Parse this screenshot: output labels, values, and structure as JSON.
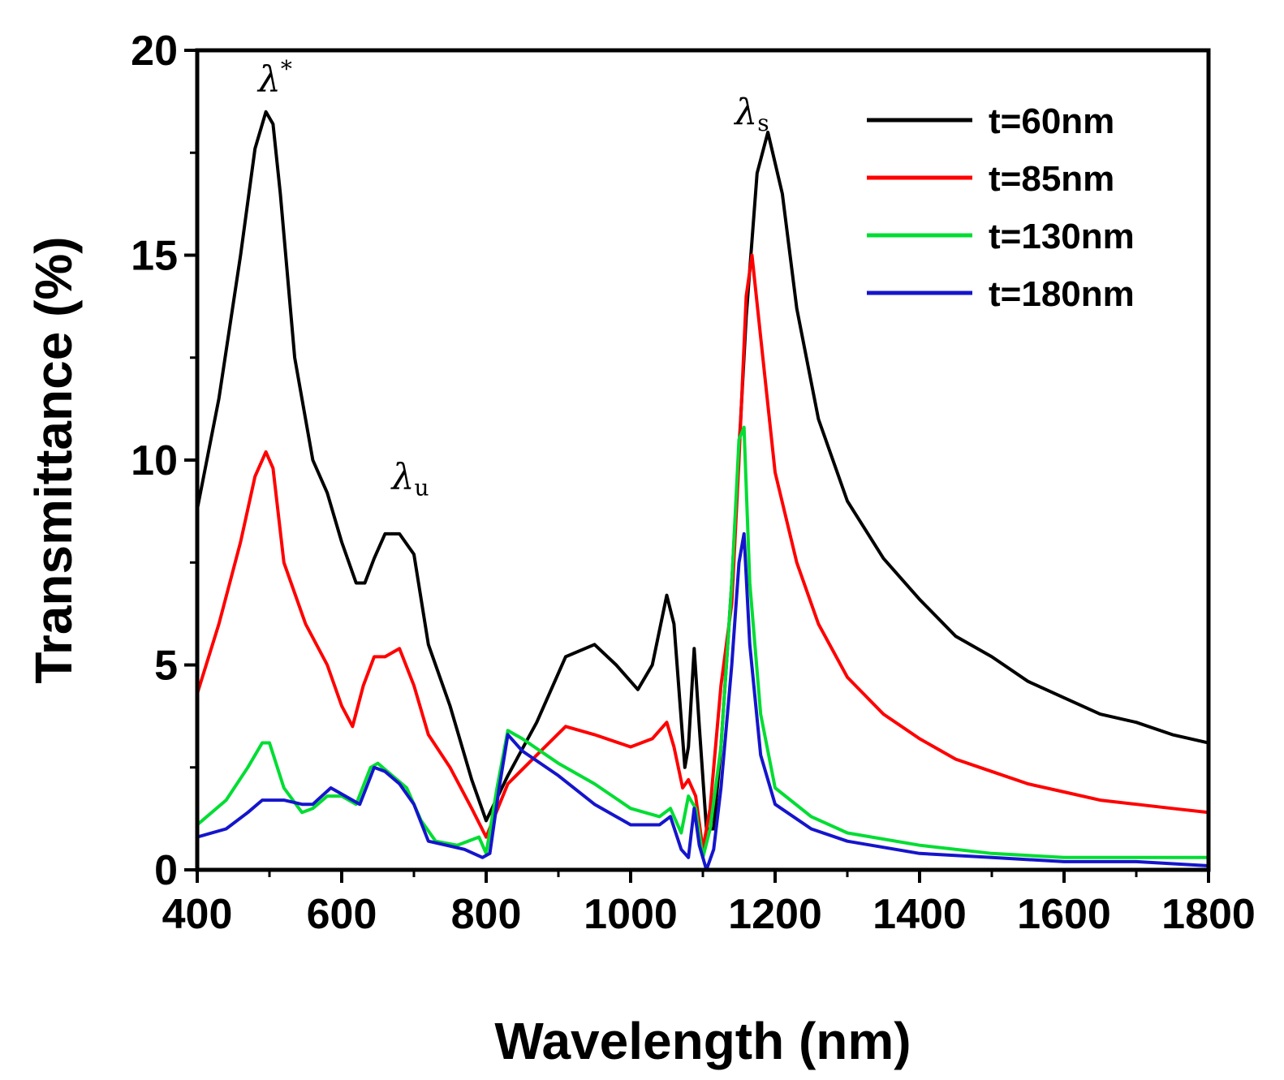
{
  "chart_data": {
    "type": "line",
    "title": "",
    "xlabel": "Wavelength (nm)",
    "ylabel": "Transmittance (%)",
    "xlim": [
      400,
      1800
    ],
    "ylim": [
      0,
      20
    ],
    "x_ticks": [
      400,
      600,
      800,
      1000,
      1200,
      1400,
      1600,
      1800
    ],
    "y_ticks": [
      0,
      5,
      10,
      15,
      20
    ],
    "grid": false,
    "legend_position": "top-right",
    "annotations": [
      {
        "symbol": "λ",
        "sub": "",
        "sup": "*",
        "x": 500,
        "y": 19.0
      },
      {
        "symbol": "λ",
        "sub": "u",
        "sup": "",
        "x": 685,
        "y": 9.3
      },
      {
        "symbol": "λ",
        "sub": "s",
        "sup": "",
        "x": 1160,
        "y": 18.2
      }
    ],
    "series": [
      {
        "name": "t=60nm",
        "color": "#000000",
        "x": [
          400,
          430,
          460,
          480,
          495,
          505,
          515,
          535,
          560,
          580,
          600,
          620,
          632,
          645,
          660,
          680,
          700,
          720,
          750,
          780,
          800,
          830,
          870,
          910,
          950,
          980,
          1010,
          1030,
          1050,
          1060,
          1075,
          1080,
          1088,
          1095,
          1105,
          1115,
          1125,
          1140,
          1160,
          1175,
          1190,
          1210,
          1230,
          1260,
          1300,
          1350,
          1400,
          1450,
          1500,
          1550,
          1600,
          1650,
          1700,
          1750,
          1800
        ],
        "y": [
          8.8,
          11.5,
          15.0,
          17.6,
          18.5,
          18.2,
          16.5,
          12.5,
          10.0,
          9.2,
          8.0,
          7.0,
          7.0,
          7.6,
          8.2,
          8.2,
          7.7,
          5.5,
          4.0,
          2.2,
          1.2,
          2.3,
          3.6,
          5.2,
          5.5,
          5.0,
          4.4,
          5.0,
          6.7,
          6.0,
          2.5,
          3.0,
          5.4,
          3.5,
          1.0,
          1.0,
          3.0,
          7.0,
          13.5,
          17.0,
          18.0,
          16.5,
          13.7,
          11.0,
          9.0,
          7.6,
          6.6,
          5.7,
          5.2,
          4.6,
          4.2,
          3.8,
          3.6,
          3.3,
          3.1
        ]
      },
      {
        "name": "t=85nm",
        "color": "#ff0000",
        "x": [
          400,
          430,
          460,
          480,
          495,
          505,
          520,
          550,
          580,
          600,
          615,
          630,
          645,
          660,
          680,
          700,
          720,
          750,
          780,
          800,
          830,
          870,
          910,
          950,
          1000,
          1030,
          1050,
          1060,
          1072,
          1080,
          1090,
          1100,
          1110,
          1125,
          1140,
          1150,
          1160,
          1168,
          1180,
          1200,
          1230,
          1260,
          1300,
          1350,
          1400,
          1450,
          1500,
          1550,
          1600,
          1650,
          1700,
          1750,
          1800
        ],
        "y": [
          4.3,
          6.0,
          8.0,
          9.6,
          10.2,
          9.8,
          7.5,
          6.0,
          5.0,
          4.0,
          3.5,
          4.5,
          5.2,
          5.2,
          5.4,
          4.5,
          3.3,
          2.5,
          1.5,
          0.8,
          2.1,
          2.8,
          3.5,
          3.3,
          3.0,
          3.2,
          3.6,
          3.0,
          2.0,
          2.2,
          1.8,
          0.5,
          1.5,
          4.5,
          6.5,
          10.0,
          14.0,
          15.0,
          13.0,
          9.7,
          7.5,
          6.0,
          4.7,
          3.8,
          3.2,
          2.7,
          2.4,
          2.1,
          1.9,
          1.7,
          1.6,
          1.5,
          1.4
        ]
      },
      {
        "name": "t=130nm",
        "color": "#00dd33",
        "x": [
          400,
          440,
          470,
          490,
          500,
          520,
          545,
          560,
          580,
          600,
          620,
          640,
          650,
          670,
          690,
          710,
          730,
          760,
          790,
          800,
          815,
          830,
          850,
          900,
          950,
          1000,
          1040,
          1055,
          1070,
          1080,
          1090,
          1100,
          1110,
          1125,
          1140,
          1150,
          1157,
          1165,
          1180,
          1200,
          1250,
          1300,
          1400,
          1500,
          1600,
          1700,
          1800
        ],
        "y": [
          1.1,
          1.7,
          2.5,
          3.1,
          3.1,
          2.0,
          1.4,
          1.5,
          1.8,
          1.8,
          1.6,
          2.5,
          2.6,
          2.3,
          2.0,
          1.2,
          0.7,
          0.6,
          0.8,
          0.4,
          2.0,
          3.4,
          3.2,
          2.6,
          2.1,
          1.5,
          1.3,
          1.5,
          0.9,
          1.8,
          1.5,
          0.3,
          1.0,
          3.0,
          7.0,
          10.5,
          10.8,
          7.0,
          3.8,
          2.0,
          1.3,
          0.9,
          0.6,
          0.4,
          0.3,
          0.3,
          0.3
        ]
      },
      {
        "name": "t=180nm",
        "color": "#1515cc",
        "x": [
          400,
          440,
          470,
          490,
          500,
          520,
          545,
          560,
          585,
          605,
          625,
          645,
          660,
          680,
          700,
          720,
          745,
          770,
          795,
          805,
          818,
          830,
          850,
          900,
          950,
          1000,
          1040,
          1055,
          1070,
          1080,
          1088,
          1095,
          1105,
          1115,
          1125,
          1140,
          1150,
          1157,
          1165,
          1180,
          1200,
          1250,
          1300,
          1400,
          1500,
          1600,
          1700,
          1800
        ],
        "y": [
          0.8,
          1.0,
          1.4,
          1.7,
          1.7,
          1.7,
          1.6,
          1.6,
          2.0,
          1.8,
          1.6,
          2.5,
          2.4,
          2.1,
          1.6,
          0.7,
          0.6,
          0.5,
          0.3,
          0.4,
          2.0,
          3.3,
          2.9,
          2.3,
          1.6,
          1.1,
          1.1,
          1.3,
          0.5,
          0.3,
          1.5,
          0.6,
          0.0,
          0.5,
          2.0,
          5.0,
          7.5,
          8.2,
          5.5,
          2.8,
          1.6,
          1.0,
          0.7,
          0.4,
          0.3,
          0.2,
          0.2,
          0.1
        ]
      }
    ]
  }
}
